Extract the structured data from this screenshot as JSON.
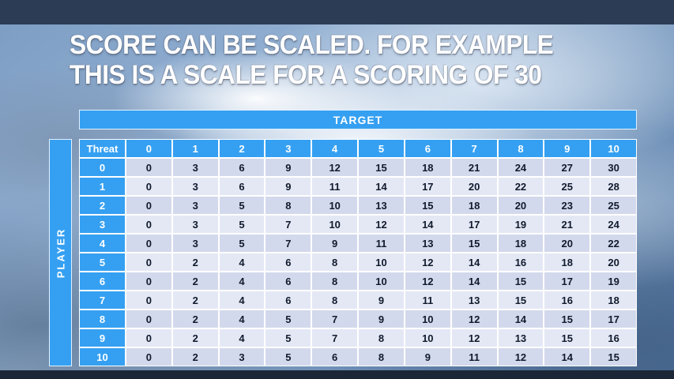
{
  "slide": {
    "title_line1": "SCORE CAN BE SCALED. FOR EXAMPLE",
    "title_line2": "THIS IS A SCALE FOR A SCORING OF 30"
  },
  "chart_data": {
    "type": "table",
    "title": "SCORE CAN BE SCALED. FOR EXAMPLE THIS IS A SCALE FOR A SCORING OF 30",
    "column_header_group": "TARGET",
    "row_header_group": "PLAYER",
    "columns": [
      "Threat",
      "0",
      "1",
      "2",
      "3",
      "4",
      "5",
      "6",
      "7",
      "8",
      "9",
      "10"
    ],
    "rows": [
      [
        "0",
        0,
        3,
        6,
        9,
        12,
        15,
        18,
        21,
        24,
        27,
        30
      ],
      [
        "1",
        0,
        3,
        6,
        9,
        11,
        14,
        17,
        20,
        22,
        25,
        28
      ],
      [
        "2",
        0,
        3,
        5,
        8,
        10,
        13,
        15,
        18,
        20,
        23,
        25
      ],
      [
        "3",
        0,
        3,
        5,
        7,
        10,
        12,
        14,
        17,
        19,
        21,
        24
      ],
      [
        "4",
        0,
        3,
        5,
        7,
        9,
        11,
        13,
        15,
        18,
        20,
        22
      ],
      [
        "5",
        0,
        2,
        4,
        6,
        8,
        10,
        12,
        14,
        16,
        18,
        20
      ],
      [
        "6",
        0,
        2,
        4,
        6,
        8,
        10,
        12,
        14,
        15,
        17,
        19
      ],
      [
        "7",
        0,
        2,
        4,
        6,
        8,
        9,
        11,
        13,
        15,
        16,
        18
      ],
      [
        "8",
        0,
        2,
        4,
        5,
        7,
        9,
        10,
        12,
        14,
        15,
        17
      ],
      [
        "9",
        0,
        2,
        4,
        5,
        7,
        8,
        10,
        12,
        13,
        15,
        16
      ],
      [
        "10",
        0,
        2,
        3,
        5,
        6,
        8,
        9,
        11,
        12,
        14,
        15
      ]
    ]
  },
  "colors": {
    "accent_blue": "#35A0F2",
    "row_band_a": "#D3D9EC",
    "row_band_b": "#E4E8F5",
    "cell_text": "#101A2C",
    "header_text": "#FFFFFF",
    "title_text": "#FFFFFF",
    "top_bar": "#2C3C55",
    "bottom_bar": "#1B2737"
  }
}
